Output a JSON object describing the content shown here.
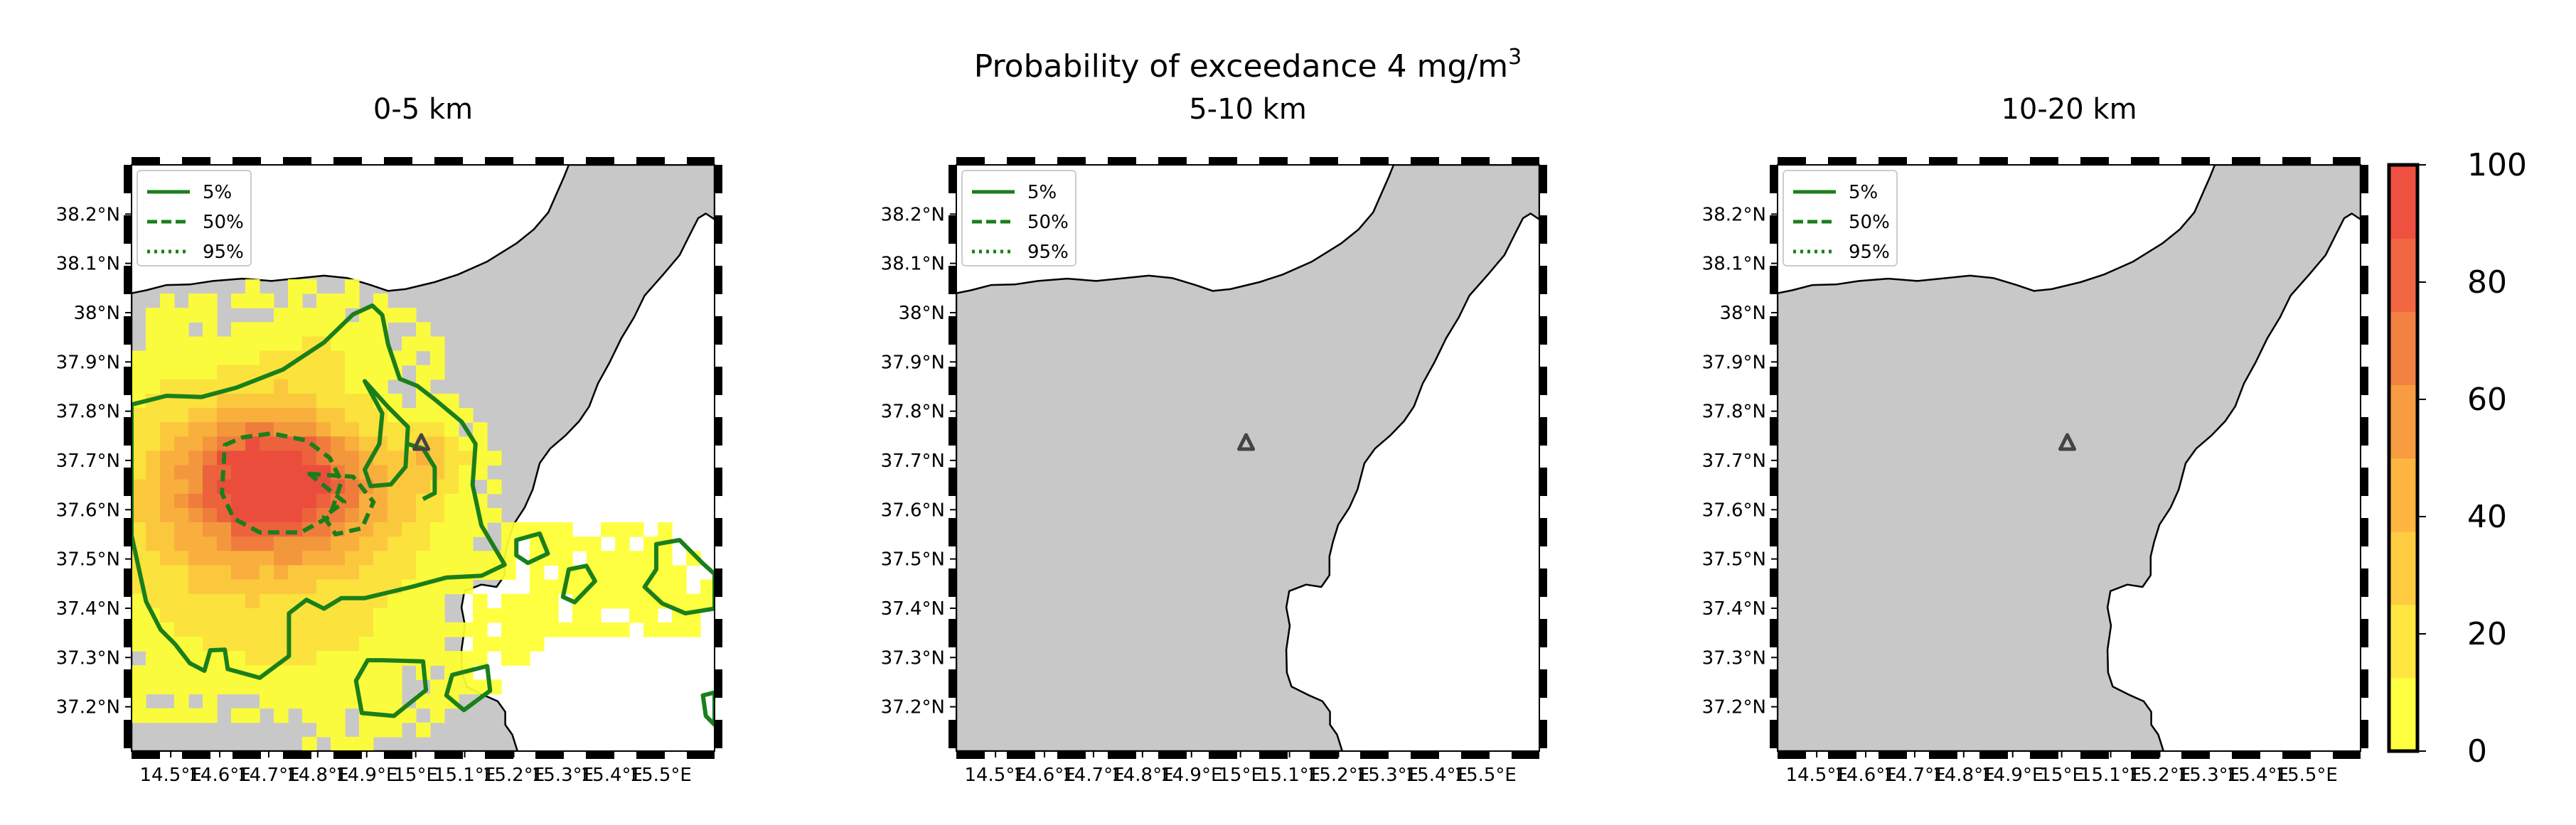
{
  "figure": {
    "suptitle": "Probability of exceedance 4 mg/m",
    "suptitle_sup": "3"
  },
  "chart_data": [
    {
      "type": "heatmap",
      "title": "0-5 km",
      "xticks": [
        "14.5°E",
        "14.6°E",
        "14.7°E",
        "14.8°E",
        "14.9°E",
        "15°E",
        "15.1°E",
        "15.2°E",
        "15.3°E",
        "15.4°E",
        "15.5°E"
      ],
      "yticks": [
        "37.2°N",
        "37.3°N",
        "37.4°N",
        "37.5°N",
        "37.6°N",
        "37.7°N",
        "37.8°N",
        "37.9°N",
        "38°N",
        "38.1°N",
        "38.2°N"
      ],
      "xlim": [
        14.42,
        15.61
      ],
      "ylim": [
        37.11,
        38.3
      ],
      "legend": {
        "position": "top-left",
        "entries": [
          "5%",
          "50%",
          "95%"
        ]
      },
      "vent": {
        "lon": 15.0,
        "lat": 37.73
      },
      "probability_field": {
        "peak": {
          "lon": 14.7,
          "lat": 37.66,
          "value": 88
        },
        "note": "probability plume spreading west and south-east of the vent"
      },
      "has_plume": true
    },
    {
      "type": "heatmap",
      "title": "5-10 km",
      "xticks": [
        "14.5°E",
        "14.6°E",
        "14.7°E",
        "14.8°E",
        "14.9°E",
        "15°E",
        "15.1°E",
        "15.2°E",
        "15.3°E",
        "15.4°E",
        "15.5°E"
      ],
      "yticks": [
        "37.2°N",
        "37.3°N",
        "37.4°N",
        "37.5°N",
        "37.6°N",
        "37.7°N",
        "37.8°N",
        "37.9°N",
        "38°N",
        "38.1°N",
        "38.2°N"
      ],
      "xlim": [
        14.42,
        15.61
      ],
      "ylim": [
        37.11,
        38.3
      ],
      "legend": {
        "position": "top-left",
        "entries": [
          "5%",
          "50%",
          "95%"
        ]
      },
      "vent": {
        "lon": 15.0,
        "lat": 37.73
      },
      "has_plume": false
    },
    {
      "type": "heatmap",
      "title": "10-20 km",
      "xticks": [
        "14.5°E",
        "14.6°E",
        "14.7°E",
        "14.8°E",
        "14.9°E",
        "15°E",
        "15.1°E",
        "15.2°E",
        "15.3°E",
        "15.4°E",
        "15.5°E"
      ],
      "yticks": [
        "37.2°N",
        "37.3°N",
        "37.4°N",
        "37.5°N",
        "37.6°N",
        "37.7°N",
        "37.8°N",
        "37.9°N",
        "38°N",
        "38.1°N",
        "38.2°N"
      ],
      "xlim": [
        14.42,
        15.61
      ],
      "ylim": [
        37.11,
        38.3
      ],
      "legend": {
        "position": "top-left",
        "entries": [
          "5%",
          "50%",
          "95%"
        ]
      },
      "vent": {
        "lon": 15.0,
        "lat": 37.73
      },
      "has_plume": false
    }
  ],
  "colorbar": {
    "ticks": [
      "0",
      "20",
      "40",
      "60",
      "80",
      "100"
    ],
    "range": [
      0,
      100
    ],
    "colors": [
      "#ffff33",
      "#ffe433",
      "#ffc833",
      "#fdae33",
      "#f79433",
      "#f27733",
      "#ef5b33",
      "#ee4433"
    ]
  },
  "colors": {
    "land": "#c8c8c8",
    "sea": "#ffffff",
    "contour": "#1a7f1a",
    "coastline": "#000000",
    "vent": "#444444"
  }
}
